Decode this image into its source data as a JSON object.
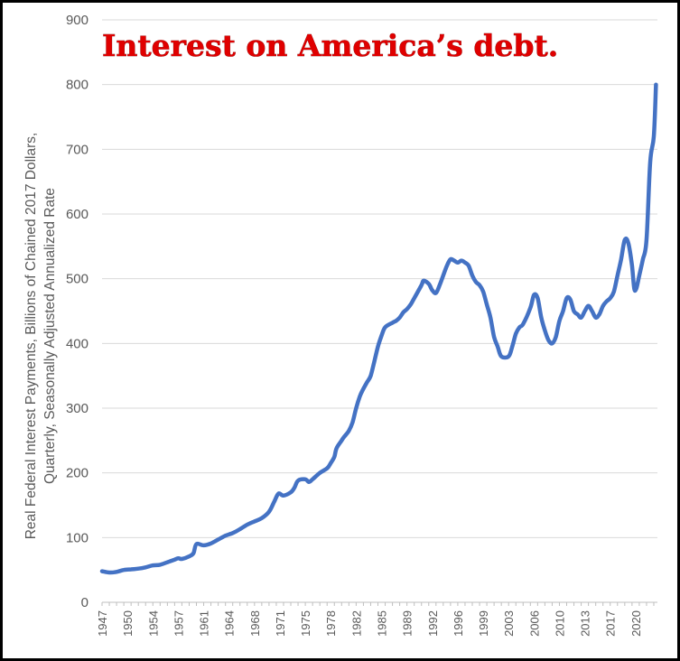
{
  "chart_data": {
    "type": "line",
    "title": "Interest on America’s debt.",
    "ylabel_lines": [
      "Real Federal Interest Payments, Billions of Chained 2017 Dollars,",
      "Quarterly, Seasonally Adjusted Annualized Rate"
    ],
    "xlabel": "",
    "ylim": [
      0,
      900
    ],
    "y_ticks": [
      "0",
      "100",
      "200",
      "300",
      "400",
      "500",
      "600",
      "700",
      "800",
      "900"
    ],
    "x_tick_labels": [
      "1947",
      "1950",
      "1954",
      "1957",
      "1961",
      "1964",
      "1968",
      "1971",
      "1975",
      "1978",
      "1982",
      "1985",
      "1989",
      "1992",
      "1996",
      "1999",
      "2003",
      "2006",
      "2010",
      "2013",
      "2017",
      "2020"
    ],
    "x_tick_values": [
      1947,
      1950.5,
      1954,
      1957.5,
      1961,
      1964.5,
      1968,
      1971.5,
      1975,
      1978.5,
      1982,
      1985.5,
      1989,
      1992.5,
      1996,
      1999.5,
      2003,
      2006.5,
      2010,
      2013.5,
      2017,
      2020.5
    ],
    "xlim": [
      1947,
      2023.5
    ],
    "grid": true,
    "line_color": "#4472c4",
    "series": [
      {
        "x": [
          1947,
          1948,
          1949,
          1950,
          1951,
          1952,
          1953,
          1954,
          1955,
          1956,
          1957,
          1957.5,
          1958,
          1959,
          1959.6,
          1960,
          1961,
          1962,
          1963,
          1964,
          1965,
          1966,
          1967,
          1968,
          1969,
          1970,
          1970.7,
          1971.3,
          1972,
          1973,
          1973.5,
          1974,
          1975,
          1975.5,
          1976,
          1977,
          1978,
          1978.5,
          1979,
          1979.3,
          1980,
          1980.3,
          1981,
          1981.5,
          1982,
          1982.5,
          1983,
          1983.5,
          1984,
          1984.5,
          1985,
          1985.5,
          1986,
          1987,
          1987.5,
          1988,
          1988.5,
          1989,
          1989.5,
          1990,
          1991,
          1991.3,
          1992,
          1992.5,
          1993,
          1993.5,
          1994,
          1994.5,
          1995,
          1995.5,
          1996,
          1996.5,
          1997,
          1997.5,
          1998,
          1998.5,
          1999,
          1999.5,
          2000,
          2000.5,
          2001,
          2001.5,
          2002,
          2003,
          2003.5,
          2004,
          2004.5,
          2005,
          2006,
          2006.5,
          2007,
          2007.5,
          2008,
          2008.5,
          2009,
          2009.5,
          2010,
          2010.5,
          2011,
          2011.5,
          2012,
          2012.5,
          2013,
          2013.5,
          2014,
          2014.5,
          2015,
          2015.5,
          2016,
          2016.5,
          2017,
          2017.5,
          2018,
          2018.5,
          2019,
          2019.5,
          2020,
          2020.3,
          2020.6,
          2021,
          2021.5,
          2022,
          2022.5,
          2023,
          2023.3
        ],
        "values": [
          48,
          46,
          47,
          50,
          51,
          52,
          54,
          57,
          58,
          62,
          66,
          68,
          67,
          71,
          76,
          90,
          88,
          91,
          97,
          103,
          107,
          113,
          120,
          125,
          130,
          140,
          155,
          168,
          165,
          170,
          177,
          188,
          190,
          186,
          190,
          200,
          207,
          215,
          225,
          238,
          250,
          255,
          265,
          278,
          300,
          318,
          330,
          340,
          350,
          372,
          395,
          412,
          425,
          432,
          435,
          440,
          448,
          453,
          460,
          470,
          490,
          497,
          492,
          482,
          478,
          490,
          505,
          520,
          530,
          528,
          525,
          528,
          525,
          520,
          505,
          495,
          490,
          480,
          460,
          440,
          410,
          395,
          380,
          380,
          395,
          415,
          425,
          430,
          455,
          475,
          470,
          440,
          420,
          405,
          400,
          410,
          435,
          450,
          470,
          468,
          450,
          445,
          440,
          450,
          458,
          450,
          440,
          445,
          458,
          465,
          470,
          480,
          505,
          530,
          560,
          555,
          520,
          485,
          485,
          505,
          530,
          560,
          680,
          720,
          800
        ]
      }
    ]
  }
}
